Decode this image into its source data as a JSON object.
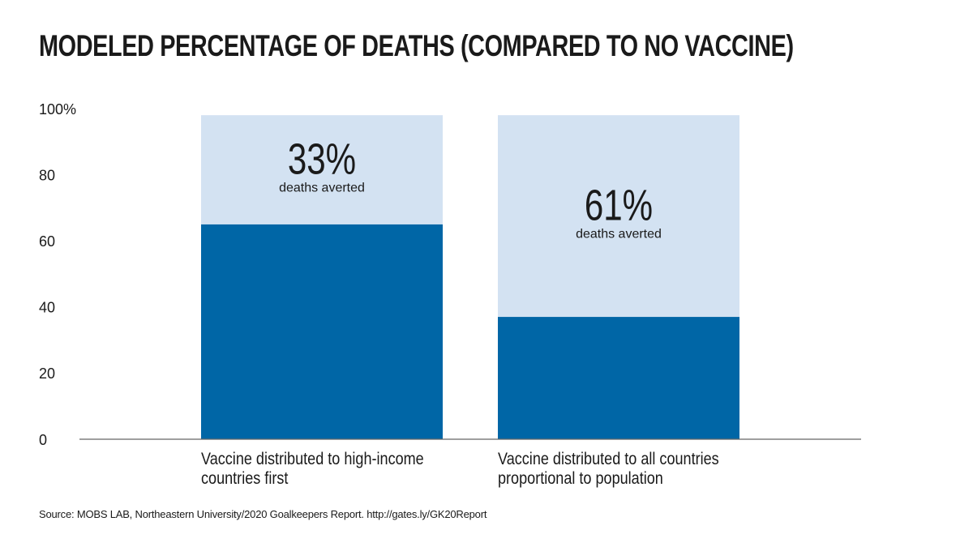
{
  "title": "MODELED PERCENTAGE OF DEATHS (COMPARED TO NO VACCINE)",
  "source": "Source: MOBS LAB, Northeastern University/2020 Goalkeepers Report. http://gates.ly/GK20Report",
  "colors": {
    "deaths": "#0066a6",
    "averted": "#d3e2f2",
    "axis": "#555555",
    "text": "#1a1a1a"
  },
  "chart_data": {
    "type": "bar",
    "stacked": true,
    "categories": [
      "Vaccine distributed to high-income countries first",
      "Vaccine distributed to all countries proportional to population"
    ],
    "category_label_lines": [
      [
        "Vaccine distributed to high-income",
        "countries first"
      ],
      [
        "Vaccine distributed to all countries",
        "proportional to population"
      ]
    ],
    "series": [
      {
        "values": [
          65,
          37
        ]
      },
      {
        "values": [
          33,
          61
        ]
      }
    ],
    "annotations": [
      {
        "value": "33%",
        "text": "deaths averted"
      },
      {
        "value": "61%",
        "text": "deaths averted"
      }
    ],
    "yticks": [
      "0",
      "20",
      "40",
      "60",
      "80",
      "100%"
    ],
    "ylim": [
      0,
      100
    ],
    "grid": false,
    "legend": "none"
  }
}
